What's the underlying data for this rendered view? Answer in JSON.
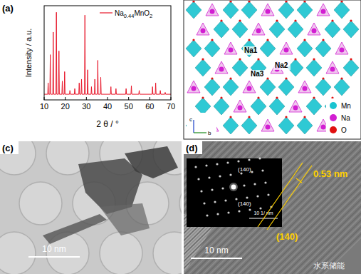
{
  "chart_data": {
    "type": "line",
    "panel_label": "(a)",
    "x_label": "2 θ / °",
    "y_label": "Intensity / a.u.",
    "x": [
      10,
      11.7,
      11.9,
      12.1,
      12.7,
      12.9,
      13.1,
      14.1,
      14.3,
      14.5,
      15.6,
      15.8,
      16.0,
      16.8,
      17.0,
      17.2,
      18.4,
      18.6,
      18.8,
      19.5,
      19.7,
      19.9,
      22.0,
      22.2,
      22.4,
      24.3,
      24.5,
      24.7,
      26.4,
      26.6,
      26.8,
      27.5,
      27.7,
      27.9,
      29.1,
      29.3,
      29.5,
      30.4,
      30.6,
      30.8,
      32.2,
      32.4,
      32.6,
      33.8,
      34.0,
      34.2,
      35.2,
      35.4,
      35.6,
      36.6,
      36.8,
      37.0,
      41.4,
      41.6,
      41.8,
      43.8,
      44.0,
      44.2,
      48.6,
      48.8,
      49.0,
      51.1,
      51.3,
      51.5,
      54.8,
      55.0,
      55.2,
      61.1,
      61.3,
      61.5,
      62.6,
      62.8,
      63.0,
      64.8,
      65.0,
      65.2,
      67.1,
      67.3,
      67.5,
      70
    ],
    "series": [
      {
        "name": "Na0.44MnO2",
        "color": "#e8192c",
        "values": [
          6,
          6,
          18,
          6,
          6,
          48,
          6,
          6,
          72,
          6,
          6,
          93,
          6,
          6,
          52,
          6,
          6,
          20,
          6,
          6,
          30,
          6,
          6,
          10,
          6,
          6,
          12,
          6,
          6,
          18,
          6,
          6,
          22,
          6,
          6,
          90,
          6,
          6,
          32,
          6,
          6,
          14,
          6,
          6,
          22,
          6,
          6,
          42,
          6,
          6,
          24,
          6,
          6,
          14,
          6,
          6,
          12,
          6,
          6,
          12,
          6,
          6,
          15,
          6,
          6,
          10,
          6,
          6,
          14,
          6,
          6,
          18,
          6,
          6,
          10,
          6,
          6,
          8,
          6,
          6
        ]
      }
    ],
    "xlim": [
      10,
      70
    ],
    "ylim": [
      0,
      100
    ],
    "xticks": [
      10,
      20,
      30,
      40,
      50,
      60,
      70
    ],
    "tick_labels": "x",
    "legend": "upper right"
  },
  "structure": {
    "site_labels": [
      "Na1",
      "Na2",
      "Na3"
    ],
    "legend": [
      {
        "name": "Mn",
        "color": "#19c4d0"
      },
      {
        "name": "Na",
        "color": "#d21ed2"
      },
      {
        "name": "O",
        "color": "#e01010"
      }
    ],
    "axes": [
      "c",
      "b"
    ]
  },
  "tem": {
    "panel_label": "(c)",
    "scale_bar": "10 nm"
  },
  "hrtem": {
    "panel_label": "(d)",
    "scale_bar": "10 nm",
    "d_spacing": "0.53 nm",
    "plane": "(140)",
    "saed": {
      "spot_labels": [
        "(140)",
        "(140)"
      ],
      "scale_bar": "10 1/ nm"
    }
  },
  "watermark": "水系储能"
}
